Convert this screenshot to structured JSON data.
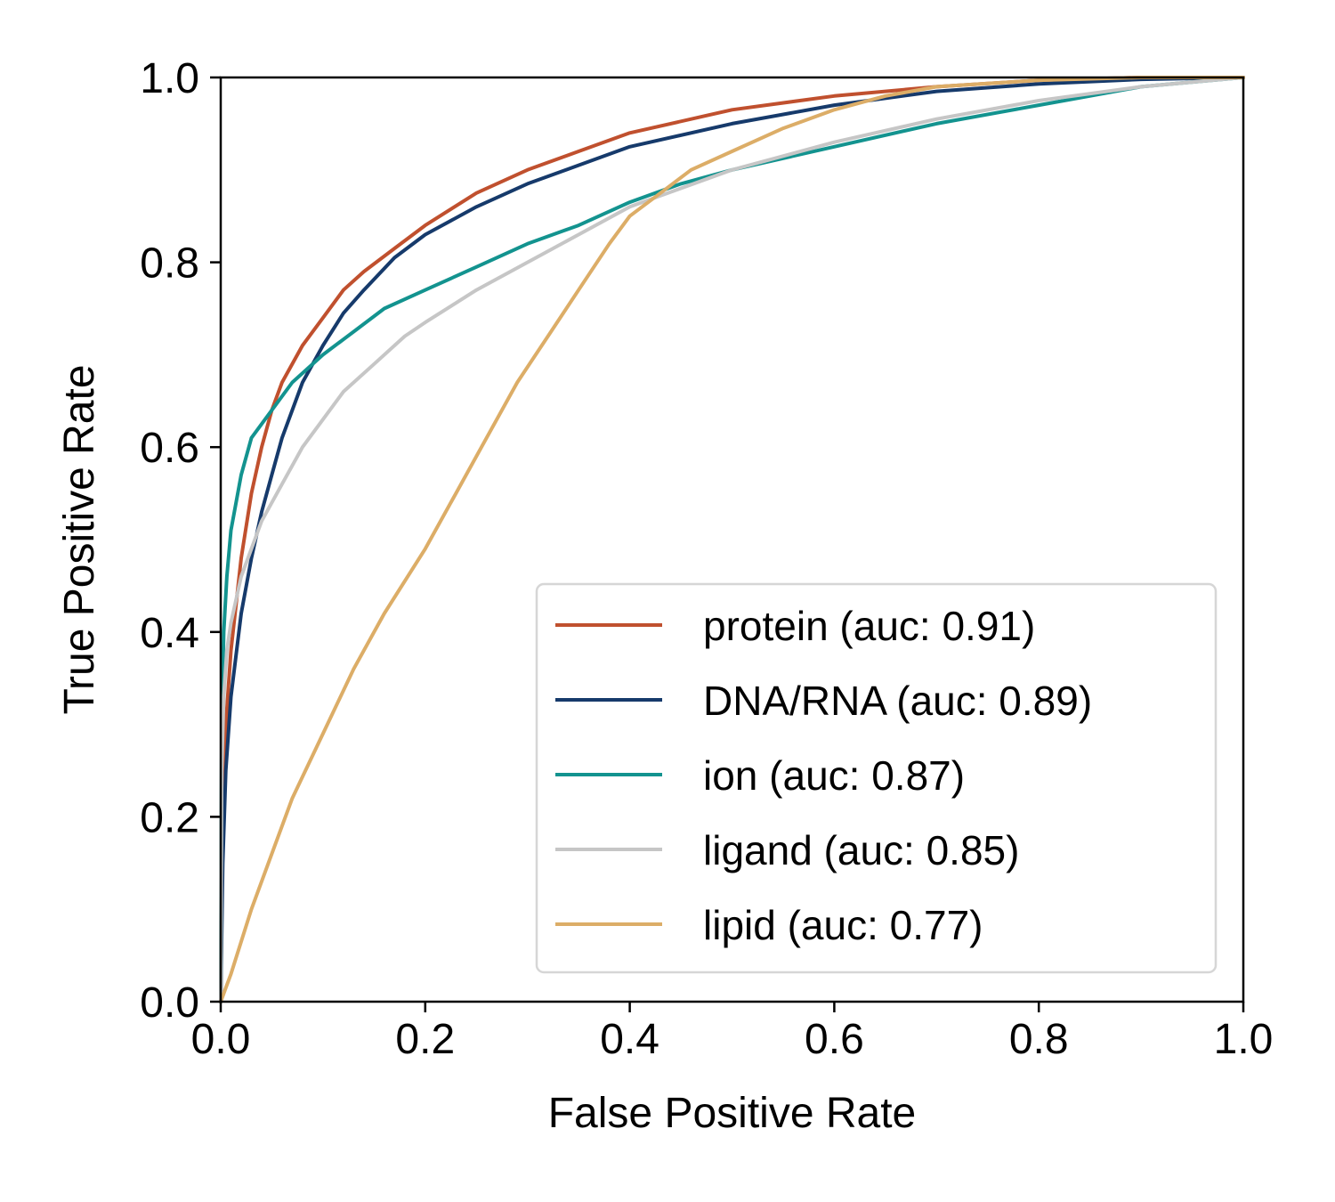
{
  "chart_data": {
    "type": "line",
    "xlabel": "False Positive Rate",
    "ylabel": "True Positive Rate",
    "xlim": [
      0.0,
      1.0
    ],
    "ylim": [
      0.0,
      1.0
    ],
    "xticks": [
      "0.0",
      "0.2",
      "0.4",
      "0.6",
      "0.8",
      "1.0"
    ],
    "yticks": [
      "0.0",
      "0.2",
      "0.4",
      "0.6",
      "0.8",
      "1.0"
    ],
    "grid": false,
    "legend_position": "lower-right",
    "series": [
      {
        "name": "protein (auc: 0.91)",
        "color": "#c0502e",
        "x": [
          0,
          0.002,
          0.005,
          0.01,
          0.02,
          0.03,
          0.04,
          0.05,
          0.06,
          0.08,
          0.1,
          0.12,
          0.14,
          0.17,
          0.2,
          0.25,
          0.3,
          0.35,
          0.4,
          0.5,
          0.6,
          0.7,
          0.8,
          0.9,
          1.0
        ],
        "y": [
          0,
          0.2,
          0.3,
          0.38,
          0.48,
          0.55,
          0.6,
          0.64,
          0.67,
          0.71,
          0.74,
          0.77,
          0.79,
          0.815,
          0.84,
          0.875,
          0.9,
          0.92,
          0.94,
          0.965,
          0.98,
          0.99,
          0.997,
          1.0,
          1.0
        ]
      },
      {
        "name": "DNA/RNA (auc: 0.89)",
        "color": "#163a6b",
        "x": [
          0,
          0.002,
          0.005,
          0.01,
          0.02,
          0.03,
          0.04,
          0.05,
          0.06,
          0.08,
          0.1,
          0.12,
          0.14,
          0.17,
          0.2,
          0.25,
          0.3,
          0.35,
          0.4,
          0.5,
          0.6,
          0.7,
          0.8,
          0.9,
          1.0
        ],
        "y": [
          0,
          0.15,
          0.25,
          0.33,
          0.42,
          0.48,
          0.53,
          0.57,
          0.61,
          0.67,
          0.71,
          0.745,
          0.77,
          0.805,
          0.83,
          0.86,
          0.885,
          0.905,
          0.925,
          0.95,
          0.97,
          0.985,
          0.993,
          0.998,
          1.0
        ]
      },
      {
        "name": "ion (auc: 0.87)",
        "color": "#13938f",
        "x": [
          0,
          0.001,
          0.003,
          0.006,
          0.01,
          0.02,
          0.03,
          0.05,
          0.07,
          0.1,
          0.13,
          0.16,
          0.2,
          0.25,
          0.3,
          0.35,
          0.4,
          0.45,
          0.5,
          0.6,
          0.7,
          0.8,
          0.9,
          1.0
        ],
        "y": [
          0,
          0.3,
          0.4,
          0.46,
          0.51,
          0.57,
          0.61,
          0.64,
          0.67,
          0.7,
          0.725,
          0.75,
          0.77,
          0.795,
          0.82,
          0.84,
          0.865,
          0.885,
          0.9,
          0.925,
          0.95,
          0.97,
          0.99,
          1.0
        ]
      },
      {
        "name": "ligand (auc: 0.85)",
        "color": "#c6c6c6",
        "x": [
          0,
          0.001,
          0.003,
          0.006,
          0.01,
          0.02,
          0.04,
          0.06,
          0.08,
          0.1,
          0.12,
          0.15,
          0.18,
          0.2,
          0.25,
          0.3,
          0.35,
          0.4,
          0.5,
          0.6,
          0.7,
          0.8,
          0.9,
          1.0
        ],
        "y": [
          0,
          0.25,
          0.33,
          0.38,
          0.41,
          0.46,
          0.52,
          0.56,
          0.6,
          0.63,
          0.66,
          0.69,
          0.72,
          0.735,
          0.77,
          0.8,
          0.83,
          0.86,
          0.9,
          0.93,
          0.955,
          0.975,
          0.99,
          1.0
        ]
      },
      {
        "name": "lipid (auc: 0.77)",
        "color": "#dcad67",
        "x": [
          0,
          0.01,
          0.03,
          0.05,
          0.07,
          0.1,
          0.13,
          0.16,
          0.2,
          0.23,
          0.26,
          0.29,
          0.32,
          0.35,
          0.38,
          0.4,
          0.43,
          0.46,
          0.5,
          0.55,
          0.6,
          0.65,
          0.7,
          0.8,
          0.9,
          1.0
        ],
        "y": [
          0,
          0.03,
          0.1,
          0.16,
          0.22,
          0.29,
          0.36,
          0.42,
          0.49,
          0.55,
          0.61,
          0.67,
          0.72,
          0.77,
          0.82,
          0.85,
          0.875,
          0.9,
          0.92,
          0.945,
          0.965,
          0.98,
          0.99,
          0.997,
          1.0,
          1.0
        ]
      }
    ]
  }
}
